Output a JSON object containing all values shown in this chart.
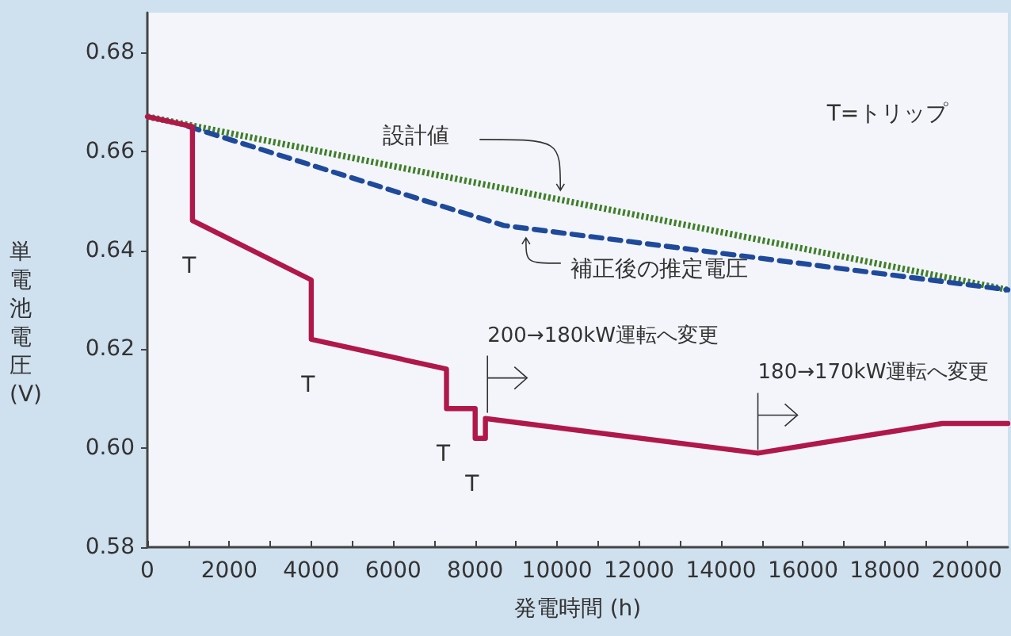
{
  "chart_data": {
    "type": "line",
    "xlabel": "発電時間 (h)",
    "ylabel": "単電池電圧(V)",
    "xlim": [
      0,
      21000
    ],
    "ylim": [
      0.58,
      0.688
    ],
    "xticks": [
      0,
      {
        "value": 1000,
        "label": null
      },
      2000,
      {
        "value": 3000,
        "label": null
      },
      4000,
      {
        "value": 5000,
        "label": null
      },
      6000,
      {
        "value": 7000,
        "label": null
      },
      8000,
      {
        "value": 9000,
        "label": null
      },
      10000,
      {
        "value": 11000,
        "label": null
      },
      12000,
      {
        "value": 13000,
        "label": null
      },
      14000,
      {
        "value": 15000,
        "label": null
      },
      16000,
      {
        "value": 17000,
        "label": null
      },
      18000,
      {
        "value": 19000,
        "label": null
      },
      20000
    ],
    "yticks": [
      {
        "value": 0.58,
        "label": "0.58"
      },
      {
        "value": 0.6,
        "label": "0.60"
      },
      {
        "value": 0.62,
        "label": "0.62"
      },
      {
        "value": 0.64,
        "label": "0.64"
      },
      {
        "value": 0.66,
        "label": "0.66"
      },
      {
        "value": 0.68,
        "label": "0.68"
      }
    ],
    "grid": false,
    "legend": false,
    "marker": "none",
    "series": [
      {
        "name": "設計値",
        "color": "#3f7f2a",
        "line_style": "dotted",
        "x": [
          0,
          21000
        ],
        "values": [
          0.667,
          0.632
        ]
      },
      {
        "name": "補正後の推定電圧",
        "color": "#1f4a9c",
        "line_style": "dashed",
        "x": [
          1000,
          8700,
          21000
        ],
        "values": [
          0.665,
          0.645,
          0.632
        ]
      },
      {
        "color": "#b0184a",
        "line_style": "solid",
        "x": [
          0,
          1100,
          1100,
          4000,
          4000,
          7300,
          7300,
          8000,
          8000,
          8250,
          8250,
          14900,
          19400,
          21000
        ],
        "values": [
          0.667,
          0.665,
          0.646,
          0.634,
          0.622,
          0.616,
          0.608,
          0.608,
          0.602,
          0.602,
          0.606,
          0.599,
          0.605,
          0.605
        ]
      }
    ],
    "annotations": [
      "T=トリップ",
      {
        "text": "T",
        "x": 1100,
        "y": 0.646
      },
      {
        "text": "T",
        "x": 4000,
        "y": 0.622
      },
      {
        "text": "T",
        "x": 7300,
        "y": 0.608
      },
      {
        "text": "T",
        "x": 8000,
        "y": 0.602
      },
      {
        "text": "200→180kW運転へ変更",
        "x": 8300,
        "y": 0.6065
      },
      {
        "text": "180→170kW運転へ変更",
        "x": 14900,
        "y": 0.599
      }
    ]
  }
}
